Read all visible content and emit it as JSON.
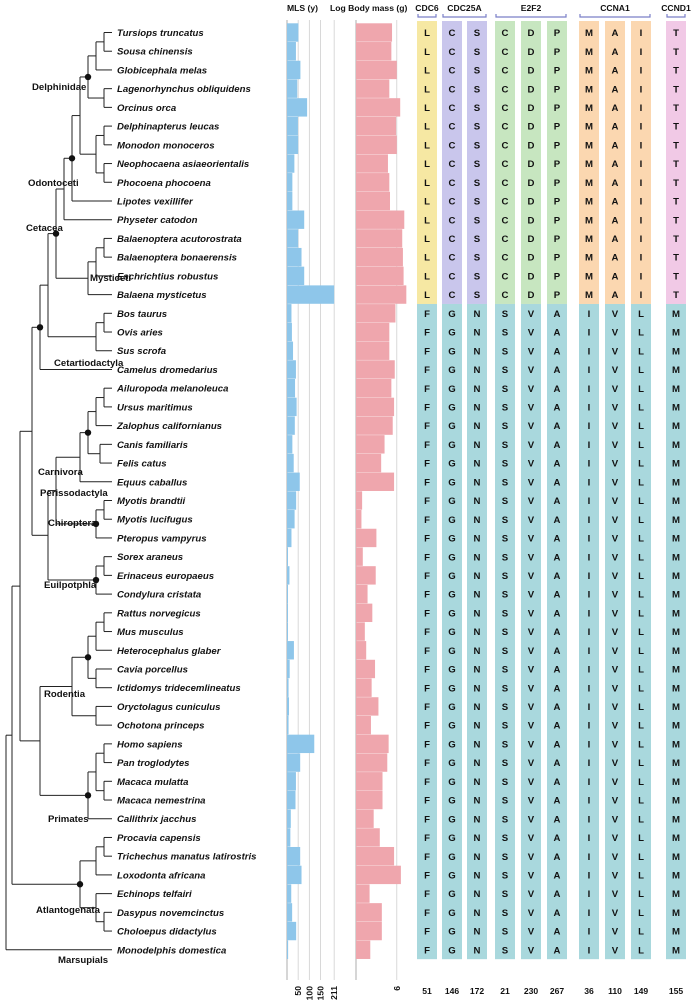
{
  "headers": {
    "mls": "MLS (y)",
    "body_mass": "Log Body mass (g)"
  },
  "mls_ticks": [
    "50",
    "100",
    "150",
    "211"
  ],
  "body_mass_tick": "6",
  "genes": [
    {
      "name": "CDC6",
      "color": "#f6e8a3",
      "positions": [
        "51"
      ]
    },
    {
      "name": "CDC25A",
      "color": "#c9c6ec",
      "positions": [
        "146",
        "172"
      ]
    },
    {
      "name": "E2F2",
      "color": "#c7e6c0",
      "positions": [
        "21",
        "230",
        "267"
      ]
    },
    {
      "name": "CCNA1",
      "color": "#fbd7b0",
      "positions": [
        "36",
        "110",
        "149"
      ]
    },
    {
      "name": "CCND1",
      "color": "#f1c9e6",
      "positions": [
        "155"
      ]
    }
  ],
  "cetacean_colors": {
    "bar_mls": "#8ec6ea",
    "bar_mass": "#efa6ad",
    "teal": "#a9d8dd"
  },
  "residues_cetacean": [
    "L",
    "C",
    "S",
    "C",
    "D",
    "P",
    "M",
    "A",
    "I",
    "T"
  ],
  "residues_other": [
    "F",
    "G",
    "N",
    "S",
    "V",
    "A",
    "I",
    "V",
    "L",
    "M"
  ],
  "species": [
    {
      "name": "Tursiops truncatus",
      "mls": 51,
      "log_mass": 5.3,
      "cetacean": true
    },
    {
      "name": "Sousa chinensis",
      "mls": 40,
      "log_mass": 5.2,
      "cetacean": true
    },
    {
      "name": "Globicephala melas",
      "mls": 60,
      "log_mass": 6.0,
      "cetacean": true
    },
    {
      "name": "Lagenorhynchus obliquidens",
      "mls": 46,
      "log_mass": 4.9,
      "cetacean": true
    },
    {
      "name": "Orcinus orca",
      "mls": 90,
      "log_mass": 6.5,
      "cetacean": true
    },
    {
      "name": "Delphinapterus leucas",
      "mls": 49,
      "log_mass": 5.9,
      "cetacean": true
    },
    {
      "name": "Monodon monoceros",
      "mls": 50,
      "log_mass": 6.0,
      "cetacean": true
    },
    {
      "name": "Neophocaena asiaeorientalis",
      "mls": 33,
      "log_mass": 4.7,
      "cetacean": true
    },
    {
      "name": "Phocoena phocoena",
      "mls": 24,
      "log_mass": 4.9,
      "cetacean": true
    },
    {
      "name": "Lipotes vexillifer",
      "mls": 24,
      "log_mass": 5.0,
      "cetacean": true
    },
    {
      "name": "Physeter catodon",
      "mls": 77,
      "log_mass": 7.1,
      "cetacean": true
    },
    {
      "name": "Balaenoptera acutorostrata",
      "mls": 50,
      "log_mass": 6.8,
      "cetacean": true
    },
    {
      "name": "Balaenoptera bonaerensis",
      "mls": 65,
      "log_mass": 6.9,
      "cetacean": true
    },
    {
      "name": "Eschrichtius robustus",
      "mls": 77,
      "log_mass": 7.0,
      "cetacean": true
    },
    {
      "name": "Balaena mysticetus",
      "mls": 211,
      "log_mass": 7.4,
      "cetacean": true
    },
    {
      "name": "Bos taurus",
      "mls": 20,
      "log_mass": 5.8,
      "cetacean": false
    },
    {
      "name": "Ovis aries",
      "mls": 22,
      "log_mass": 4.9,
      "cetacean": false
    },
    {
      "name": "Sus scrofa",
      "mls": 27,
      "log_mass": 4.9,
      "cetacean": false
    },
    {
      "name": "Camelus dromedarius",
      "mls": 40,
      "log_mass": 5.7,
      "cetacean": false
    },
    {
      "name": "Ailuropoda melanoleuca",
      "mls": 36,
      "log_mass": 5.2,
      "cetacean": false
    },
    {
      "name": "Ursus maritimus",
      "mls": 43,
      "log_mass": 5.6,
      "cetacean": false
    },
    {
      "name": "Zalophus californianus",
      "mls": 35,
      "log_mass": 5.4,
      "cetacean": false
    },
    {
      "name": "Canis familiaris",
      "mls": 24,
      "log_mass": 4.2,
      "cetacean": false
    },
    {
      "name": "Felis catus",
      "mls": 30,
      "log_mass": 3.7,
      "cetacean": false
    },
    {
      "name": "Equus caballus",
      "mls": 57,
      "log_mass": 5.6,
      "cetacean": false
    },
    {
      "name": "Myotis brandtii",
      "mls": 41,
      "log_mass": 0.9,
      "cetacean": false
    },
    {
      "name": "Myotis lucifugus",
      "mls": 34,
      "log_mass": 0.8,
      "cetacean": false
    },
    {
      "name": "Pteropus vampyrus",
      "mls": 20,
      "log_mass": 3.0,
      "cetacean": false
    },
    {
      "name": "Sorex araneus",
      "mls": 3,
      "log_mass": 1.0,
      "cetacean": false
    },
    {
      "name": "Erinaceus europaeus",
      "mls": 11,
      "log_mass": 2.9,
      "cetacean": false
    },
    {
      "name": "Condylura cristata",
      "mls": 4,
      "log_mass": 1.7,
      "cetacean": false
    },
    {
      "name": "Rattus norvegicus",
      "mls": 4,
      "log_mass": 2.4,
      "cetacean": false
    },
    {
      "name": "Mus musculus",
      "mls": 4,
      "log_mass": 1.3,
      "cetacean": false
    },
    {
      "name": "Heterocephalus glaber",
      "mls": 31,
      "log_mass": 1.5,
      "cetacean": false
    },
    {
      "name": "Cavia porcellus",
      "mls": 12,
      "log_mass": 2.8,
      "cetacean": false
    },
    {
      "name": "Ictidomys tridecemlineatus",
      "mls": 7,
      "log_mass": 2.3,
      "cetacean": false
    },
    {
      "name": "Oryctolagus cuniculus",
      "mls": 9,
      "log_mass": 3.3,
      "cetacean": false
    },
    {
      "name": "Ochotona princeps",
      "mls": 7,
      "log_mass": 2.2,
      "cetacean": false
    },
    {
      "name": "Homo sapiens",
      "mls": 122,
      "log_mass": 4.8,
      "cetacean": false
    },
    {
      "name": "Pan troglodytes",
      "mls": 59,
      "log_mass": 4.6,
      "cetacean": false
    },
    {
      "name": "Macaca mulatta",
      "mls": 40,
      "log_mass": 3.9,
      "cetacean": false
    },
    {
      "name": "Macaca nemestrina",
      "mls": 38,
      "log_mass": 3.9,
      "cetacean": false
    },
    {
      "name": "Callithrix jacchus",
      "mls": 17,
      "log_mass": 2.6,
      "cetacean": false
    },
    {
      "name": "Procavia capensis",
      "mls": 15,
      "log_mass": 3.5,
      "cetacean": false
    },
    {
      "name": "Trichechus manatus latirostris",
      "mls": 59,
      "log_mass": 5.6,
      "cetacean": false
    },
    {
      "name": "Loxodonta africana",
      "mls": 65,
      "log_mass": 6.6,
      "cetacean": false
    },
    {
      "name": "Echinops telfairi",
      "mls": 19,
      "log_mass": 2.0,
      "cetacean": false
    },
    {
      "name": "Dasypus novemcinctus",
      "mls": 23,
      "log_mass": 3.8,
      "cetacean": false
    },
    {
      "name": "Choloepus didactylus",
      "mls": 41,
      "log_mass": 3.8,
      "cetacean": false
    },
    {
      "name": "Monodelphis domestica",
      "mls": 5,
      "log_mass": 2.1,
      "cetacean": false
    }
  ],
  "clades": [
    {
      "name": "Delphinidae"
    },
    {
      "name": "Odontoceti"
    },
    {
      "name": "Cetacea"
    },
    {
      "name": "Mysticeti"
    },
    {
      "name": "Cetartiodactyla"
    },
    {
      "name": "Carnivora"
    },
    {
      "name": "Perissodactyla"
    },
    {
      "name": "Chiroptera"
    },
    {
      "name": "Euilpotphla"
    },
    {
      "name": "Rodentia"
    },
    {
      "name": "Primates"
    },
    {
      "name": "Atlantogenata"
    },
    {
      "name": "Marsupials"
    }
  ]
}
